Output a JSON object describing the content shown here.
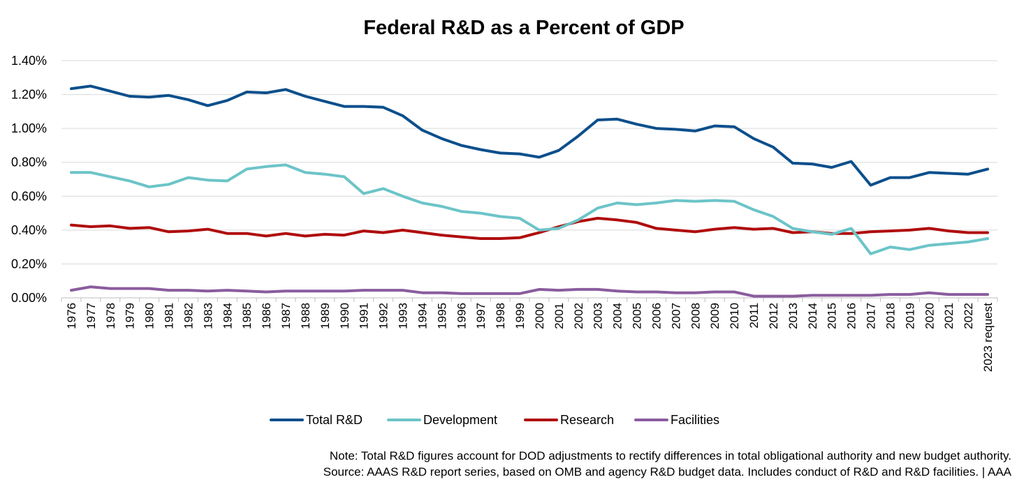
{
  "chart_data": {
    "type": "line",
    "title": "Federal R&D as a Percent of GDP",
    "xlabel": "",
    "ylabel": "",
    "ylim": [
      0,
      1.4
    ],
    "y_ticks": [
      0,
      0.2,
      0.4,
      0.6,
      0.8,
      1.0,
      1.2,
      1.4
    ],
    "y_tick_labels": [
      "0.00%",
      "0.20%",
      "0.40%",
      "0.60%",
      "0.80%",
      "1.00%",
      "1.20%",
      "1.40%"
    ],
    "grid": "horizontal",
    "legend_position": "bottom",
    "categories": [
      "1976",
      "1977",
      "1978",
      "1979",
      "1980",
      "1981",
      "1982",
      "1983",
      "1984",
      "1985",
      "1986",
      "1987",
      "1988",
      "1989",
      "1990",
      "1991",
      "1992",
      "1993",
      "1994",
      "1995",
      "1996",
      "1997",
      "1998",
      "1999",
      "2000",
      "2001",
      "2002",
      "2003",
      "2004",
      "2005",
      "2006",
      "2007",
      "2008",
      "2009",
      "2010",
      "2011",
      "2012",
      "2013",
      "2014",
      "2015",
      "2016",
      "2017",
      "2018",
      "2019",
      "2020",
      "2021",
      "2022",
      "2023 request"
    ],
    "series": [
      {
        "name": "Total R&D",
        "color": "#0b4f8c",
        "values": [
          1.235,
          1.25,
          1.22,
          1.19,
          1.185,
          1.195,
          1.17,
          1.135,
          1.165,
          1.215,
          1.21,
          1.23,
          1.19,
          1.16,
          1.13,
          1.13,
          1.125,
          1.075,
          0.99,
          0.94,
          0.9,
          0.875,
          0.855,
          0.85,
          0.83,
          0.87,
          0.955,
          1.05,
          1.055,
          1.025,
          1.0,
          0.995,
          0.985,
          1.015,
          1.01,
          0.94,
          0.89,
          0.795,
          0.79,
          0.77,
          0.805,
          0.665,
          0.71,
          0.71,
          0.74,
          0.735,
          0.73,
          0.76
        ]
      },
      {
        "name": "Development",
        "color": "#6cc4c8",
        "values": [
          0.74,
          0.74,
          0.715,
          0.69,
          0.655,
          0.67,
          0.71,
          0.695,
          0.69,
          0.76,
          0.775,
          0.785,
          0.74,
          0.73,
          0.715,
          0.615,
          0.645,
          0.6,
          0.56,
          0.54,
          0.51,
          0.5,
          0.48,
          0.47,
          0.4,
          0.41,
          0.46,
          0.53,
          0.56,
          0.55,
          0.56,
          0.575,
          0.57,
          0.575,
          0.57,
          0.52,
          0.48,
          0.41,
          0.39,
          0.375,
          0.41,
          0.26,
          0.3,
          0.285,
          0.31,
          0.32,
          0.33,
          0.35
        ]
      },
      {
        "name": "Research",
        "color": "#b00c0c",
        "values": [
          0.43,
          0.42,
          0.425,
          0.41,
          0.415,
          0.39,
          0.395,
          0.405,
          0.38,
          0.38,
          0.365,
          0.38,
          0.365,
          0.375,
          0.37,
          0.395,
          0.385,
          0.4,
          0.385,
          0.37,
          0.36,
          0.35,
          0.35,
          0.355,
          0.385,
          0.42,
          0.45,
          0.47,
          0.46,
          0.445,
          0.41,
          0.4,
          0.39,
          0.405,
          0.415,
          0.405,
          0.41,
          0.385,
          0.39,
          0.38,
          0.38,
          0.39,
          0.395,
          0.4,
          0.41,
          0.395,
          0.385,
          0.385
        ]
      },
      {
        "name": "Facilities",
        "color": "#8a5c9e",
        "values": [
          0.045,
          0.065,
          0.055,
          0.055,
          0.055,
          0.045,
          0.045,
          0.04,
          0.045,
          0.04,
          0.035,
          0.04,
          0.04,
          0.04,
          0.04,
          0.045,
          0.045,
          0.045,
          0.03,
          0.03,
          0.025,
          0.025,
          0.025,
          0.025,
          0.05,
          0.045,
          0.05,
          0.05,
          0.04,
          0.035,
          0.035,
          0.03,
          0.03,
          0.035,
          0.035,
          0.01,
          0.01,
          0.01,
          0.015,
          0.015,
          0.015,
          0.015,
          0.02,
          0.02,
          0.03,
          0.02,
          0.02,
          0.02
        ]
      }
    ]
  },
  "notes": {
    "line1": "Note: Total R&D figures account for DOD adjustments to rectify differences in total obligational authority and new budget authority.",
    "line2": "Source: AAAS R&D report series, based on OMB and agency R&D budget data. Includes conduct of R&D and R&D facilities. | AAA"
  }
}
